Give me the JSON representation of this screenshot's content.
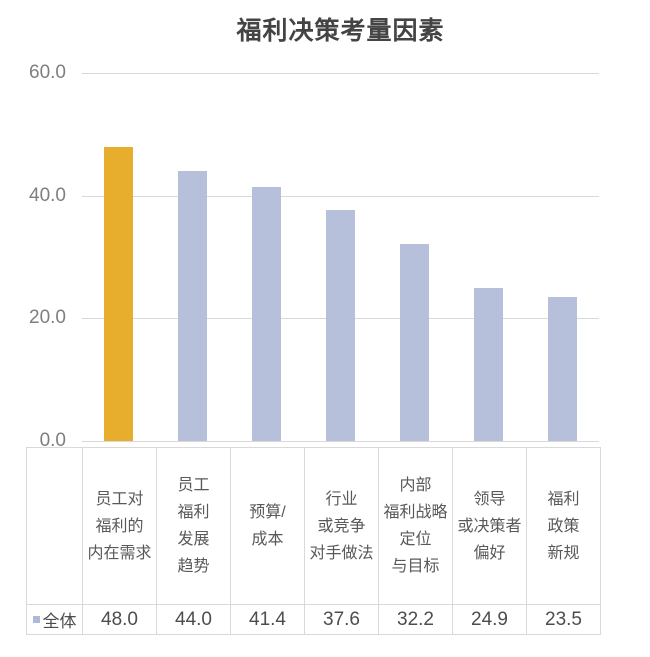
{
  "chart_data": {
    "type": "bar",
    "title": "福利决策考量因素",
    "categories": [
      "员工对福利的内在需求",
      "员工福利发展趋势",
      "预算/成本",
      "行业或竞争对手做法",
      "内部福利战略定位与目标",
      "领导或决策者偏好",
      "福利政策新规"
    ],
    "categories_multiline": [
      [
        "员工对",
        "福利的",
        "内在需求"
      ],
      [
        "员工",
        "福利",
        "发展",
        "趋势"
      ],
      [
        "预算/",
        "成本"
      ],
      [
        "行业",
        "或竞争",
        "对手做法"
      ],
      [
        "内部",
        "福利战略",
        "定位",
        "与目标"
      ],
      [
        "领导",
        "或决策者",
        "偏好"
      ],
      [
        "福利",
        "政策",
        "新规"
      ]
    ],
    "series": [
      {
        "name": "全体",
        "values": [
          48.0,
          44.0,
          41.4,
          37.6,
          32.2,
          24.9,
          23.5
        ]
      }
    ],
    "values_display": [
      "48.0",
      "44.0",
      "41.4",
      "37.6",
      "32.2",
      "24.9",
      "23.5"
    ],
    "ylim": [
      0,
      60
    ],
    "yticks": [
      {
        "value": 0,
        "label": "0.0"
      },
      {
        "value": 20,
        "label": "20.0"
      },
      {
        "value": 40,
        "label": "40.0"
      },
      {
        "value": 60,
        "label": "60.0"
      }
    ],
    "grid": true,
    "legend_label": "全体",
    "legend_position": "table-row-left",
    "highlight_index": 0,
    "colors": {
      "highlight_bar": "#E6AE2C",
      "default_bar": "#B7C0DB",
      "legend_marker": "#AEB9D8",
      "gridline": "#D9D9D9",
      "axis_label": "#7F7F7F",
      "table_border": "#D9D9D9",
      "header_text": "#595959",
      "value_text": "#4D4D4D",
      "title_text": "#444444"
    }
  }
}
